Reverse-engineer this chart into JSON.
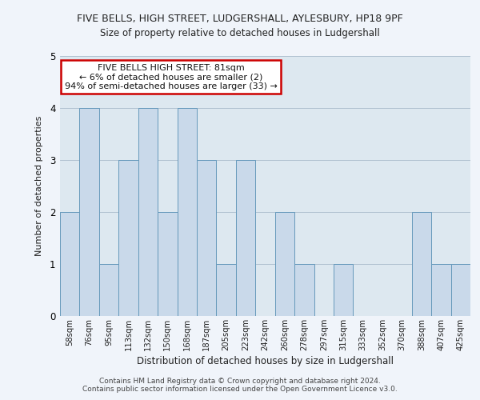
{
  "title_line1": "FIVE BELLS, HIGH STREET, LUDGERSHALL, AYLESBURY, HP18 9PF",
  "title_line2": "Size of property relative to detached houses in Ludgershall",
  "xlabel": "Distribution of detached houses by size in Ludgershall",
  "ylabel": "Number of detached properties",
  "bin_labels": [
    "58sqm",
    "76sqm",
    "95sqm",
    "113sqm",
    "132sqm",
    "150sqm",
    "168sqm",
    "187sqm",
    "205sqm",
    "223sqm",
    "242sqm",
    "260sqm",
    "278sqm",
    "297sqm",
    "315sqm",
    "333sqm",
    "352sqm",
    "370sqm",
    "388sqm",
    "407sqm",
    "425sqm"
  ],
  "values": [
    2,
    4,
    1,
    3,
    4,
    2,
    4,
    3,
    1,
    3,
    0,
    2,
    1,
    0,
    1,
    0,
    0,
    0,
    2,
    1,
    1
  ],
  "bar_color": "#c9d9ea",
  "bar_edge_color": "#6699bb",
  "annotation_text": "FIVE BELLS HIGH STREET: 81sqm\n← 6% of detached houses are smaller (2)\n94% of semi-detached houses are larger (33) →",
  "annotation_box_color": "#ffffff",
  "annotation_box_edge_color": "#cc0000",
  "ylim": [
    0,
    5
  ],
  "yticks": [
    0,
    1,
    2,
    3,
    4,
    5
  ],
  "footer_line1": "Contains HM Land Registry data © Crown copyright and database right 2024.",
  "footer_line2": "Contains public sector information licensed under the Open Government Licence v3.0.",
  "bg_color": "#f0f4fa",
  "plot_bg_color": "#dde8f0"
}
